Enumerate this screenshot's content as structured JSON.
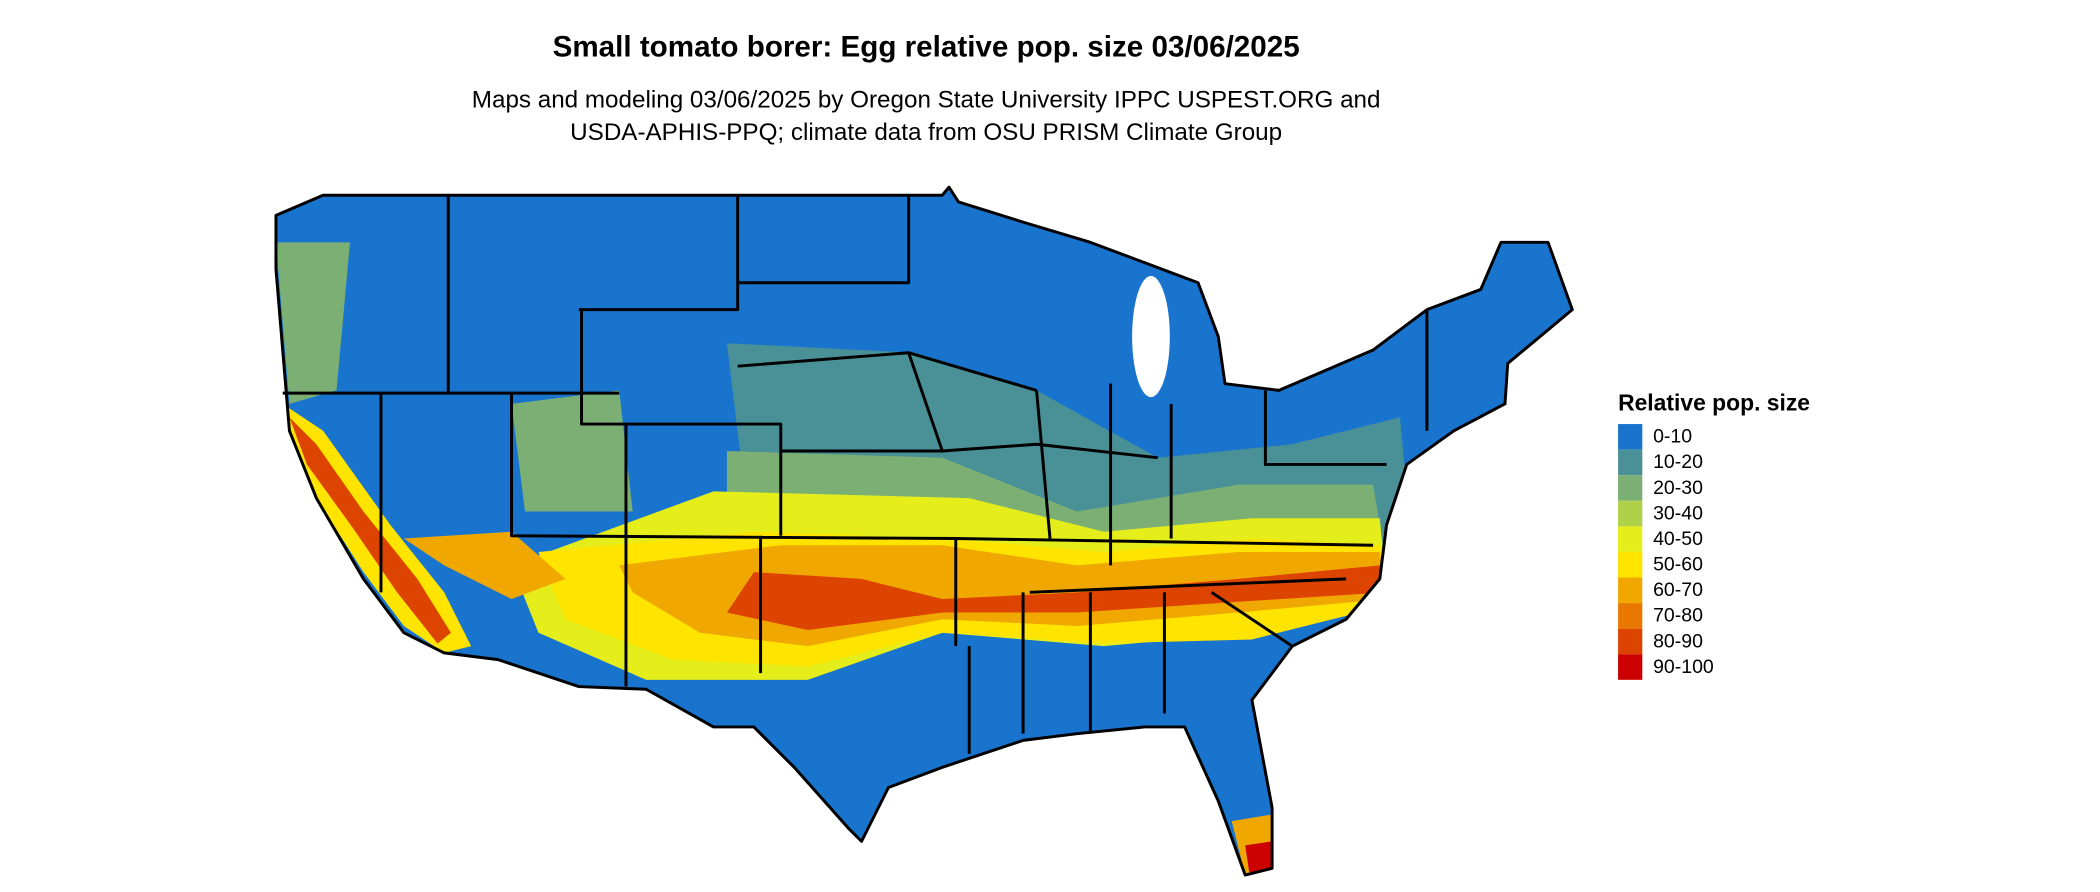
{
  "map": {
    "title": "Small tomato borer: Egg relative pop. size 03/06/2025",
    "subtitle": [
      "Maps and modeling 03/06/2025 by Oregon State University IPPC USPEST.ORG and",
      "USDA-APHIS-PPQ; climate data from OSU PRISM Climate Group"
    ],
    "legend": {
      "title": "Relative pop. size",
      "items": [
        {
          "label": "0-10",
          "color": "#1874cd"
        },
        {
          "label": "10-20",
          "color": "#4a9097"
        },
        {
          "label": "20-30",
          "color": "#7baf74"
        },
        {
          "label": "30-40",
          "color": "#b0d04a"
        },
        {
          "label": "40-50",
          "color": "#e5ee1a"
        },
        {
          "label": "50-60",
          "color": "#ffe400"
        },
        {
          "label": "60-70",
          "color": "#f0a800"
        },
        {
          "label": "70-80",
          "color": "#e87800"
        },
        {
          "label": "80-90",
          "color": "#dd4400"
        },
        {
          "label": "90-100",
          "color": "#cc0000"
        }
      ]
    }
  }
}
